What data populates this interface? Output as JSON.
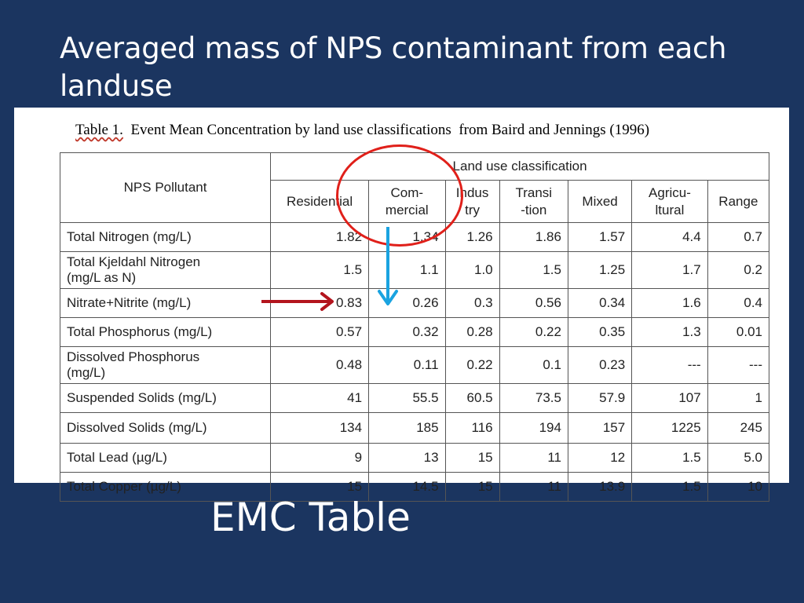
{
  "slide": {
    "title": "Averaged mass of NPS contaminant from each landuse",
    "footer_label": "EMC Table"
  },
  "table": {
    "caption_lead": "Table 1.",
    "caption_rest": "  Event Mean Concentration by land use classifications  from Baird and Jennings (1996)",
    "pollutant_header": "NPS Pollutant",
    "group_header": "Land use classification",
    "columns": [
      "Residential",
      "Com-\nmercial",
      "Indus\ntry",
      "Transi\n-tion",
      "Mixed",
      "Agricu-\nltural",
      "Range"
    ],
    "rows": [
      {
        "name": "Total Nitrogen (mg/L)",
        "values": [
          "1.82",
          "1.34",
          "1.26",
          "1.86",
          "1.57",
          "4.4",
          "0.7"
        ]
      },
      {
        "name": "Total Kjeldahl  Nitrogen\n(mg/L as N)",
        "values": [
          "1.5",
          "1.1",
          "1.0",
          "1.5",
          "1.25",
          "1.7",
          "0.2"
        ]
      },
      {
        "name": "Nitrate+Nitrite  (mg/L)",
        "values": [
          "0.83",
          "0.26",
          "0.3",
          "0.56",
          "0.34",
          "1.6",
          "0.4"
        ]
      },
      {
        "name": "Total Phosphorus (mg/L)",
        "values": [
          "0.57",
          "0.32",
          "0.28",
          "0.22",
          "0.35",
          "1.3",
          "0.01"
        ]
      },
      {
        "name": "Dissolved Phosphorus\n(mg/L)",
        "values": [
          "0.48",
          "0.11",
          "0.22",
          "0.1",
          "0.23",
          "---",
          "---"
        ]
      },
      {
        "name": "Suspended Solids (mg/L)",
        "values": [
          "41",
          "55.5",
          "60.5",
          "73.5",
          "57.9",
          "107",
          "1"
        ]
      },
      {
        "name": "Dissolved Solids (mg/L)",
        "values": [
          "134",
          "185",
          "116",
          "194",
          "157",
          "1225",
          "245"
        ]
      },
      {
        "name": "Total Lead  (µg/L)",
        "values": [
          "9",
          "13",
          "15",
          "11",
          "12",
          "1.5",
          "5.0"
        ]
      },
      {
        "name": "Total Copper (µg/L)",
        "values": [
          "15",
          "14.5",
          "15",
          "11",
          "13.9",
          "1.5",
          "10"
        ]
      }
    ]
  },
  "annotations": {
    "circle_color": "#e0201a",
    "down_arrow_color": "#1aa3e0",
    "right_arrow_color": "#b3141d"
  }
}
